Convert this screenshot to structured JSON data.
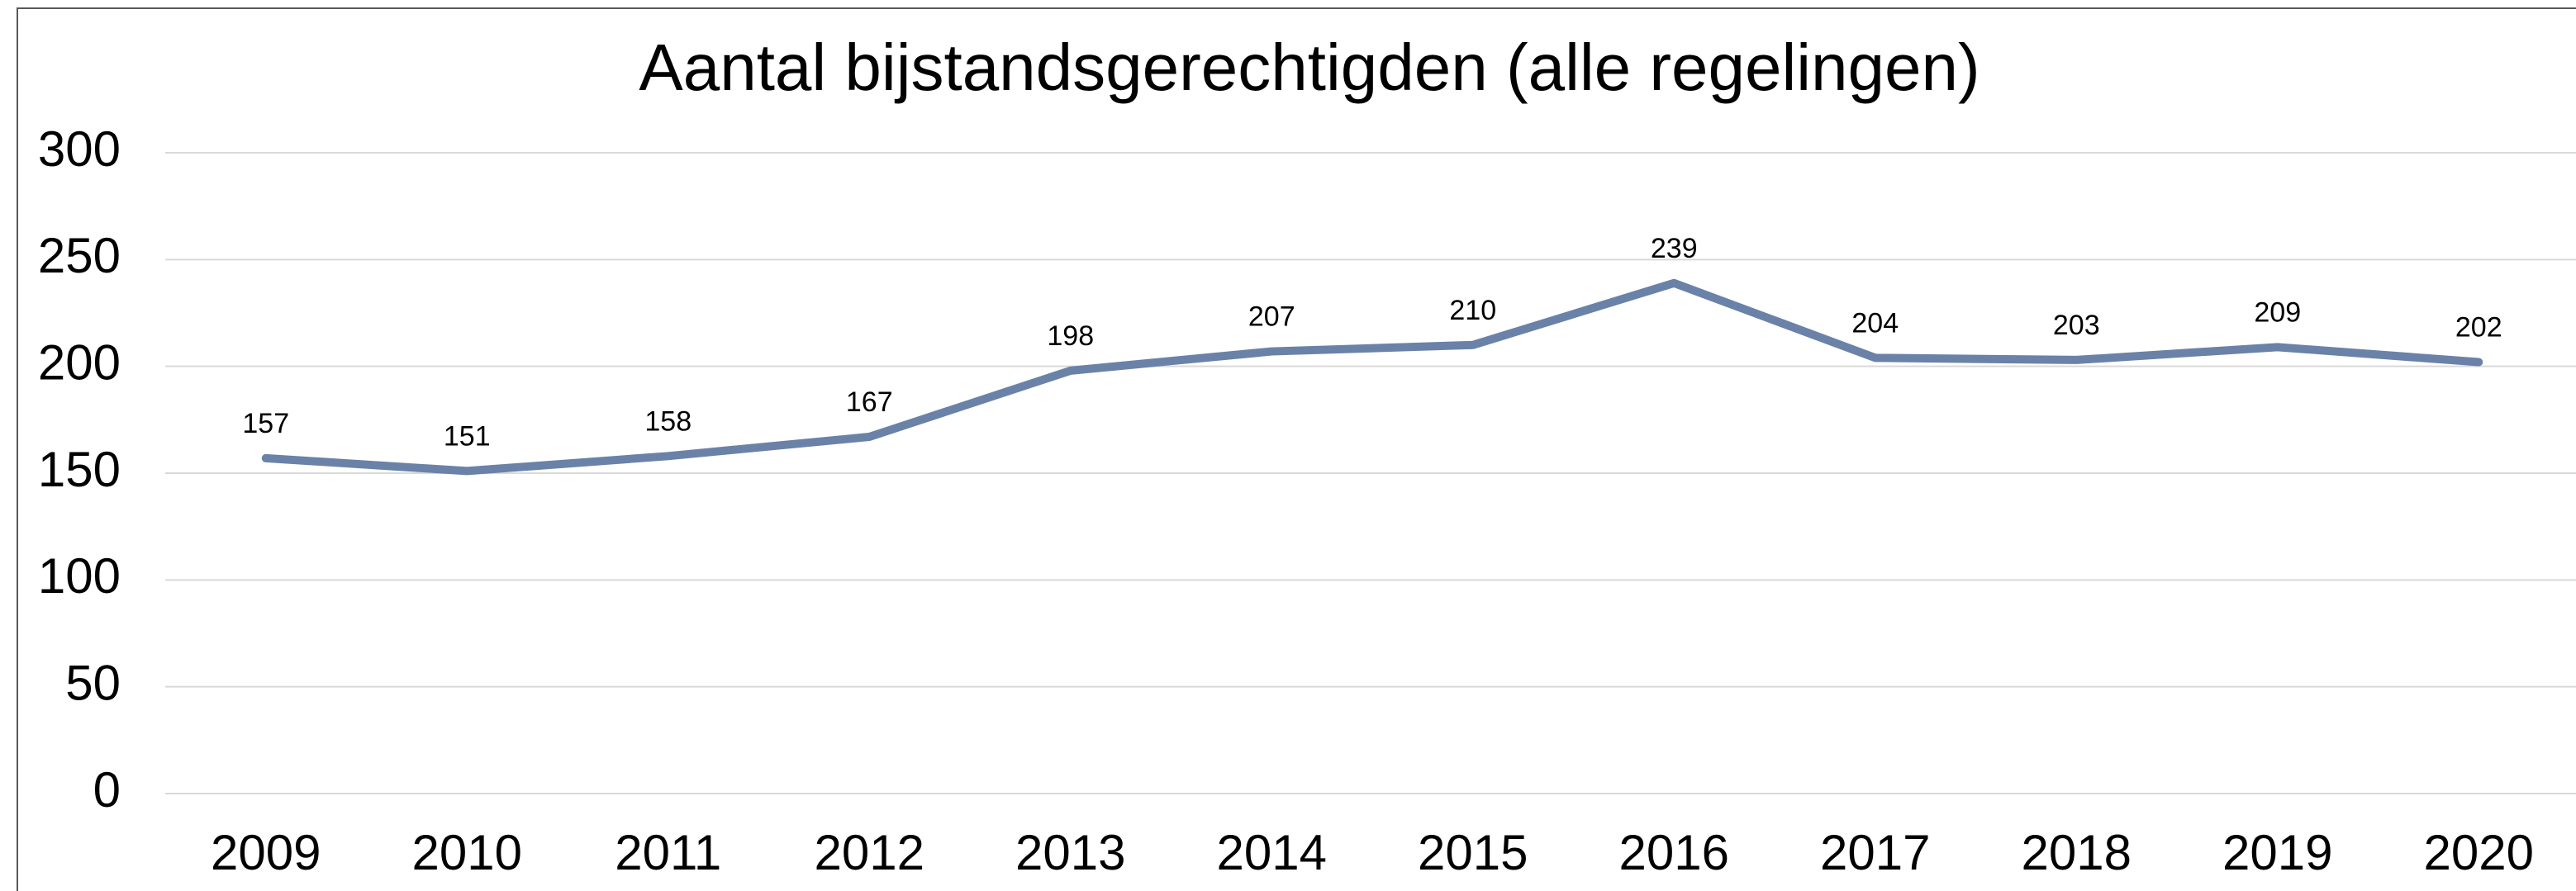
{
  "chart_data": {
    "type": "line",
    "title": "Aantal bijstandsgerechtigden (alle regelingen)",
    "categories": [
      "2009",
      "2010",
      "2011",
      "2012",
      "2013",
      "2014",
      "2015",
      "2016",
      "2017",
      "2018",
      "2019",
      "2020"
    ],
    "series": [
      {
        "name": "Aantal bijstandsgerechtigden",
        "color": "#6a82a8",
        "values": [
          157,
          151,
          158,
          167,
          198,
          207,
          210,
          239,
          204,
          203,
          209,
          202
        ]
      }
    ],
    "ylim": [
      0,
      300
    ],
    "yticks": [
      0,
      50,
      100,
      150,
      200,
      250,
      300
    ],
    "grid": true
  }
}
